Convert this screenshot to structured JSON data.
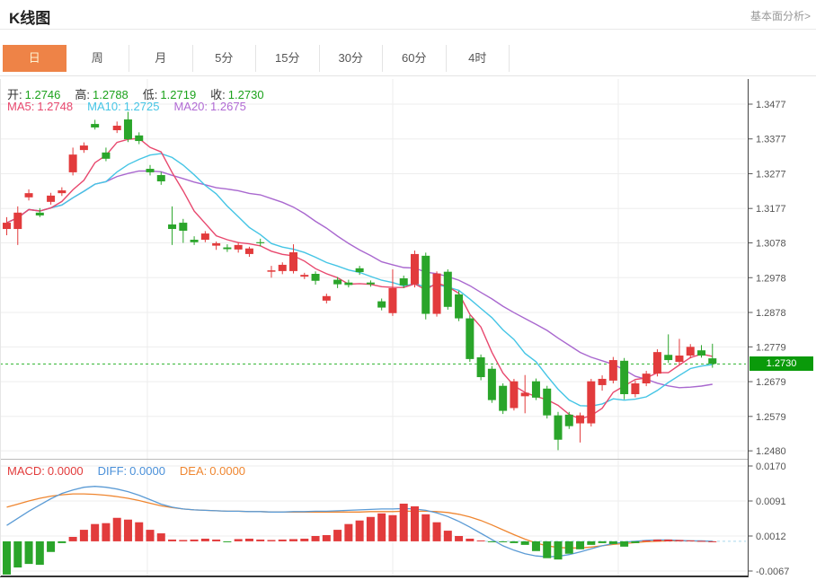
{
  "header": {
    "title": "K线图",
    "link": "基本面分析>"
  },
  "tabs": [
    {
      "name": "day",
      "label": "日",
      "active": true
    },
    {
      "name": "week",
      "label": "周",
      "active": false
    },
    {
      "name": "month",
      "label": "月",
      "active": false
    },
    {
      "name": "5min",
      "label": "5分",
      "active": false
    },
    {
      "name": "15min",
      "label": "15分",
      "active": false
    },
    {
      "name": "30min",
      "label": "30分",
      "active": false
    },
    {
      "name": "60min",
      "label": "60分",
      "active": false
    },
    {
      "name": "4hour",
      "label": "4时",
      "active": false
    }
  ],
  "legend": {
    "ohlc": [
      {
        "label": "开:",
        "value": "1.2746"
      },
      {
        "label": "高:",
        "value": "1.2788"
      },
      {
        "label": "低:",
        "value": "1.2719"
      },
      {
        "label": "收:",
        "value": "1.2730"
      }
    ],
    "ma": [
      {
        "label": "MA5:",
        "value": "1.2748",
        "color": "#e8486e"
      },
      {
        "label": "MA10:",
        "value": "1.2725",
        "color": "#45c5e5"
      },
      {
        "label": "MA20:",
        "value": "1.2675",
        "color": "#b16ad4"
      }
    ],
    "macd": [
      {
        "label": "MACD:",
        "value": "0.0000",
        "color": "#e23b3b"
      },
      {
        "label": "DIFF:",
        "value": "0.0000",
        "color": "#4a90d9"
      },
      {
        "label": "DEA:",
        "value": "0.0000",
        "color": "#ef8630"
      }
    ]
  },
  "price_axis": {
    "labels": [
      "1.3477",
      "1.3377",
      "1.3277",
      "1.3177",
      "1.3078",
      "1.2978",
      "1.2878",
      "1.2779",
      "1.2679",
      "1.2579",
      "1.2480"
    ],
    "current": "1.2730"
  },
  "macd_axis": {
    "labels": [
      "0.0170",
      "0.0091",
      "0.0012",
      "-0.0067"
    ]
  },
  "colors": {
    "up": "#e23b3c",
    "down": "#2aa52a",
    "ma5": "#e8486e",
    "ma10": "#45c5e5",
    "ma20": "#a968cf",
    "diff": "#5b9bd5",
    "dea": "#ef8630",
    "ohlc_value": "#1ca21c",
    "badge_bg": "#0a9a0a",
    "dotted_line": "#2db32d",
    "grid": "#ededed",
    "axis": "#555"
  },
  "chart_data": {
    "type": "candlestick+macd",
    "title": "K线图 daily candles with MA5/MA10/MA20 and MACD sub-panel",
    "price_axis_values": [
      1.3477,
      1.3377,
      1.3277,
      1.3177,
      1.3078,
      1.2978,
      1.2878,
      1.2779,
      1.2679,
      1.2579,
      1.248
    ],
    "macd_axis_values": [
      0.017,
      0.0091,
      0.0012,
      -0.0067
    ],
    "current_price": 1.273,
    "last_candle": {
      "open": 1.2746,
      "high": 1.2788,
      "low": 1.2719,
      "close": 1.273
    },
    "ma_periods": [
      5,
      10,
      20
    ],
    "candles": [
      [
        1.3118,
        1.3152,
        1.31,
        1.3136
      ],
      [
        1.3118,
        1.3183,
        1.3072,
        1.3165
      ],
      [
        1.3209,
        1.3232,
        1.32,
        1.3221
      ],
      [
        1.3165,
        1.3178,
        1.3152,
        1.3157
      ],
      [
        1.3196,
        1.3222,
        1.3188,
        1.3214
      ],
      [
        1.3221,
        1.3238,
        1.3213,
        1.3229
      ],
      [
        1.3281,
        1.3352,
        1.3272,
        1.3332
      ],
      [
        1.3345,
        1.3367,
        1.3337,
        1.3358
      ],
      [
        1.342,
        1.3432,
        1.3404,
        1.341
      ],
      [
        1.3338,
        1.3352,
        1.3313,
        1.332
      ],
      [
        1.3402,
        1.3427,
        1.3394,
        1.3415
      ],
      [
        1.3433,
        1.3455,
        1.3368,
        1.3376
      ],
      [
        1.3387,
        1.3396,
        1.3362,
        1.3371
      ],
      [
        1.3291,
        1.3302,
        1.3272,
        1.3281
      ],
      [
        1.3273,
        1.3282,
        1.3245,
        1.3255
      ],
      [
        1.3131,
        1.3183,
        1.3072,
        1.3118
      ],
      [
        1.3136,
        1.3147,
        1.3078,
        1.3113
      ],
      [
        1.3087,
        1.3097,
        1.3072,
        1.308
      ],
      [
        1.3087,
        1.3112,
        1.308,
        1.3105
      ],
      [
        1.307,
        1.3082,
        1.3058,
        1.3077
      ],
      [
        1.3065,
        1.3074,
        1.3052,
        1.306
      ],
      [
        1.3059,
        1.308,
        1.305,
        1.3072
      ],
      [
        1.3046,
        1.3067,
        1.3038,
        1.3062
      ],
      [
        1.308,
        1.309,
        1.3068,
        1.3077
      ],
      [
        1.2995,
        1.3012,
        1.2978,
        1.2999
      ],
      [
        1.2997,
        1.3022,
        1.2988,
        1.3015
      ],
      [
        1.2997,
        1.3074,
        1.299,
        1.3051
      ],
      [
        1.2981,
        1.2992,
        1.2974,
        1.2986
      ],
      [
        1.2989,
        1.2996,
        1.2958,
        1.2969
      ],
      [
        1.2912,
        1.2932,
        1.2904,
        1.2925
      ],
      [
        1.2972,
        1.298,
        1.2948,
        1.2959
      ],
      [
        1.2964,
        1.2972,
        1.295,
        1.2957
      ],
      [
        1.3005,
        1.3012,
        1.2986,
        1.2994
      ],
      [
        1.2964,
        1.297,
        1.2952,
        1.2959
      ],
      [
        1.291,
        1.2918,
        1.2884,
        1.2892
      ],
      [
        1.2876,
        1.3002,
        1.2868,
        1.2948
      ],
      [
        1.2976,
        1.2984,
        1.2948,
        1.2956
      ],
      [
        1.2959,
        1.3056,
        1.295,
        1.3046
      ],
      [
        1.3041,
        1.305,
        1.2858,
        1.2874
      ],
      [
        1.2874,
        1.2996,
        1.2866,
        1.299
      ],
      [
        1.2995,
        1.3002,
        1.2886,
        1.2894
      ],
      [
        1.293,
        1.294,
        1.2853,
        1.2861
      ],
      [
        1.2861,
        1.287,
        1.2736,
        1.2744
      ],
      [
        1.2749,
        1.2757,
        1.2683,
        1.2692
      ],
      [
        1.2716,
        1.2724,
        1.2618,
        1.2626
      ],
      [
        1.2667,
        1.2674,
        1.2586,
        1.2595
      ],
      [
        1.2603,
        1.2687,
        1.2596,
        1.268
      ],
      [
        1.2637,
        1.2698,
        1.2588,
        1.2647
      ],
      [
        1.268,
        1.2688,
        1.2626,
        1.2633
      ],
      [
        1.2659,
        1.2667,
        1.2573,
        1.2582
      ],
      [
        1.2582,
        1.2592,
        1.2482,
        1.2512
      ],
      [
        1.2584,
        1.2592,
        1.2543,
        1.2551
      ],
      [
        1.2559,
        1.259,
        1.2504,
        1.2582
      ],
      [
        1.2559,
        1.2687,
        1.255,
        1.268
      ],
      [
        1.2669,
        1.2697,
        1.2653,
        1.2687
      ],
      [
        1.2682,
        1.275,
        1.2674,
        1.2741
      ],
      [
        1.2739,
        1.2747,
        1.2628,
        1.2643
      ],
      [
        1.2643,
        1.2682,
        1.2634,
        1.2674
      ],
      [
        1.2674,
        1.271,
        1.2666,
        1.2702
      ],
      [
        1.2702,
        1.2772,
        1.2694,
        1.2764
      ],
      [
        1.2756,
        1.2815,
        1.2733,
        1.2741
      ],
      [
        1.2736,
        1.2802,
        1.2728,
        1.2754
      ],
      [
        1.2754,
        1.2787,
        1.2746,
        1.2779
      ],
      [
        1.2769,
        1.2784,
        1.2748,
        1.2754
      ],
      [
        1.2746,
        1.2788,
        1.2719,
        1.273
      ]
    ],
    "macd": {
      "hist": [
        -0.0075,
        -0.0059,
        -0.0051,
        -0.0053,
        -0.0024,
        -0.0004,
        0.001,
        0.0026,
        0.0039,
        0.0041,
        0.0053,
        0.0049,
        0.0043,
        0.0026,
        0.0018,
        0.0004,
        0.0003,
        0.0004,
        0.0006,
        0.0004,
        -0.0002,
        0.0005,
        0.0006,
        0.0004,
        0.0003,
        0.0004,
        0.0005,
        0.0006,
        0.0012,
        0.0014,
        0.0026,
        0.0039,
        0.0047,
        0.0055,
        0.0063,
        0.0059,
        0.0085,
        0.0079,
        0.0061,
        0.0043,
        0.0024,
        0.0012,
        0.0006,
        0.0002,
        -0.0001,
        -0.0002,
        -0.0004,
        -0.0008,
        -0.0022,
        -0.0038,
        -0.0041,
        -0.0028,
        -0.0018,
        -0.0008,
        -0.0004,
        -0.0006,
        -0.0012,
        -0.0004,
        0.0002,
        0.0004,
        0.0004,
        0.0003,
        0.0002,
        0.0001,
        0.0
      ],
      "diff": [
        0.0036,
        0.0052,
        0.0068,
        0.0082,
        0.0096,
        0.0108,
        0.0116,
        0.0122,
        0.0124,
        0.0122,
        0.0118,
        0.0112,
        0.0104,
        0.0094,
        0.0084,
        0.0077,
        0.0073,
        0.0071,
        0.007,
        0.0069,
        0.0068,
        0.0068,
        0.0067,
        0.0067,
        0.0066,
        0.0066,
        0.0067,
        0.0067,
        0.0068,
        0.0068,
        0.0069,
        0.007,
        0.0071,
        0.0072,
        0.0073,
        0.0073,
        0.0074,
        0.0073,
        0.007,
        0.0064,
        0.0056,
        0.0045,
        0.0032,
        0.0018,
        0.0004,
        -0.001,
        -0.002,
        -0.0028,
        -0.0033,
        -0.0035,
        -0.0034,
        -0.003,
        -0.0024,
        -0.0017,
        -0.001,
        -0.0005,
        -0.0002,
        0.0,
        0.0002,
        0.0003,
        0.0003,
        0.0002,
        0.0001,
        0.0001,
        0.0
      ],
      "dea": [
        0.0077,
        0.0084,
        0.0091,
        0.0097,
        0.0102,
        0.0105,
        0.0107,
        0.0107,
        0.0106,
        0.0104,
        0.0101,
        0.0097,
        0.0092,
        0.0086,
        0.008,
        0.0076,
        0.0073,
        0.0071,
        0.007,
        0.0069,
        0.0068,
        0.0068,
        0.0067,
        0.0067,
        0.0066,
        0.0066,
        0.0066,
        0.0066,
        0.0066,
        0.0066,
        0.0066,
        0.0066,
        0.0066,
        0.0067,
        0.0067,
        0.0067,
        0.0068,
        0.0068,
        0.0068,
        0.0067,
        0.0065,
        0.0061,
        0.0055,
        0.0047,
        0.0037,
        0.0026,
        0.0015,
        0.0005,
        -0.0004,
        -0.001,
        -0.0014,
        -0.0015,
        -0.0015,
        -0.0013,
        -0.001,
        -0.0007,
        -0.0005,
        -0.0003,
        -0.0001,
        0.0,
        0.0001,
        0.0001,
        0.0001,
        0.0,
        0.0
      ]
    },
    "grid": {
      "vertical_x": [
        164,
        437,
        688
      ],
      "legend_position": "top-left"
    }
  }
}
